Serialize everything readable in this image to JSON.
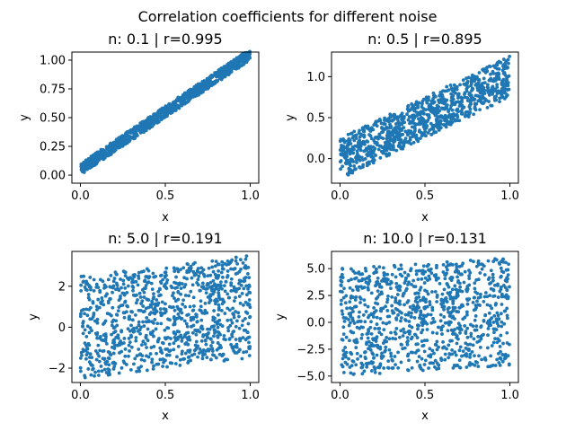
{
  "figure": {
    "suptitle": "Correlation coefficients for different noise"
  },
  "chart_data": [
    {
      "type": "scatter",
      "title": "n: 0.1 | r=0.995",
      "xlabel": "x",
      "ylabel": "y",
      "xlim": [
        -0.05,
        1.05
      ],
      "ylim": [
        -0.07,
        1.07
      ],
      "xticks": [
        0.0,
        0.5,
        1.0
      ],
      "xtick_labels": [
        "0.0",
        "0.5",
        "1.0"
      ],
      "yticks": [
        0.0,
        0.25,
        0.5,
        0.75,
        1.0
      ],
      "ytick_labels": [
        "0.00",
        "0.25",
        "0.50",
        "0.75",
        "1.00"
      ],
      "grid": false,
      "color": "#1f77b4",
      "n_points": 1000,
      "trend": {
        "slope": 1.0,
        "intercept": 0.0
      },
      "noise_scale": 0.1,
      "noise_offset": 0.0
    },
    {
      "type": "scatter",
      "title": "n: 0.5 | r=0.895",
      "xlabel": "x",
      "ylabel": "y",
      "xlim": [
        -0.05,
        1.05
      ],
      "ylim": [
        -0.3,
        1.3
      ],
      "xticks": [
        0.0,
        0.5,
        1.0
      ],
      "xtick_labels": [
        "0.0",
        "0.5",
        "1.0"
      ],
      "yticks": [
        0.0,
        0.5,
        1.0
      ],
      "ytick_labels": [
        "0.0",
        "0.5",
        "1.0"
      ],
      "grid": false,
      "color": "#1f77b4",
      "n_points": 1000,
      "trend": {
        "slope": 1.0,
        "intercept": 0.0
      },
      "noise_scale": 0.5,
      "noise_offset": -0.25
    },
    {
      "type": "scatter",
      "title": "n: 5.0 | r=0.191",
      "xlabel": "x",
      "ylabel": "y",
      "xlim": [
        -0.05,
        1.05
      ],
      "ylim": [
        -2.7,
        3.7
      ],
      "xticks": [
        0.0,
        0.5,
        1.0
      ],
      "xtick_labels": [
        "0.0",
        "0.5",
        "1.0"
      ],
      "yticks": [
        -2,
        0,
        2
      ],
      "ytick_labels": [
        "−2",
        "0",
        "2"
      ],
      "grid": false,
      "color": "#1f77b4",
      "n_points": 1000,
      "trend": {
        "slope": 1.0,
        "intercept": 0.0
      },
      "noise_scale": 5.0,
      "noise_offset": -2.5
    },
    {
      "type": "scatter",
      "title": "n: 10.0 | r=0.131",
      "xlabel": "x",
      "ylabel": "y",
      "xlim": [
        -0.05,
        1.05
      ],
      "ylim": [
        -5.6,
        6.6
      ],
      "xticks": [
        0.0,
        0.5,
        1.0
      ],
      "xtick_labels": [
        "0.0",
        "0.5",
        "1.0"
      ],
      "yticks": [
        -5.0,
        -2.5,
        0.0,
        2.5,
        5.0
      ],
      "ytick_labels": [
        "−5.0",
        "−2.5",
        "0.0",
        "2.5",
        "5.0"
      ],
      "grid": false,
      "color": "#1f77b4",
      "n_points": 1000,
      "trend": {
        "slope": 1.0,
        "intercept": 0.0
      },
      "noise_scale": 10.0,
      "noise_offset": -5.0
    }
  ]
}
